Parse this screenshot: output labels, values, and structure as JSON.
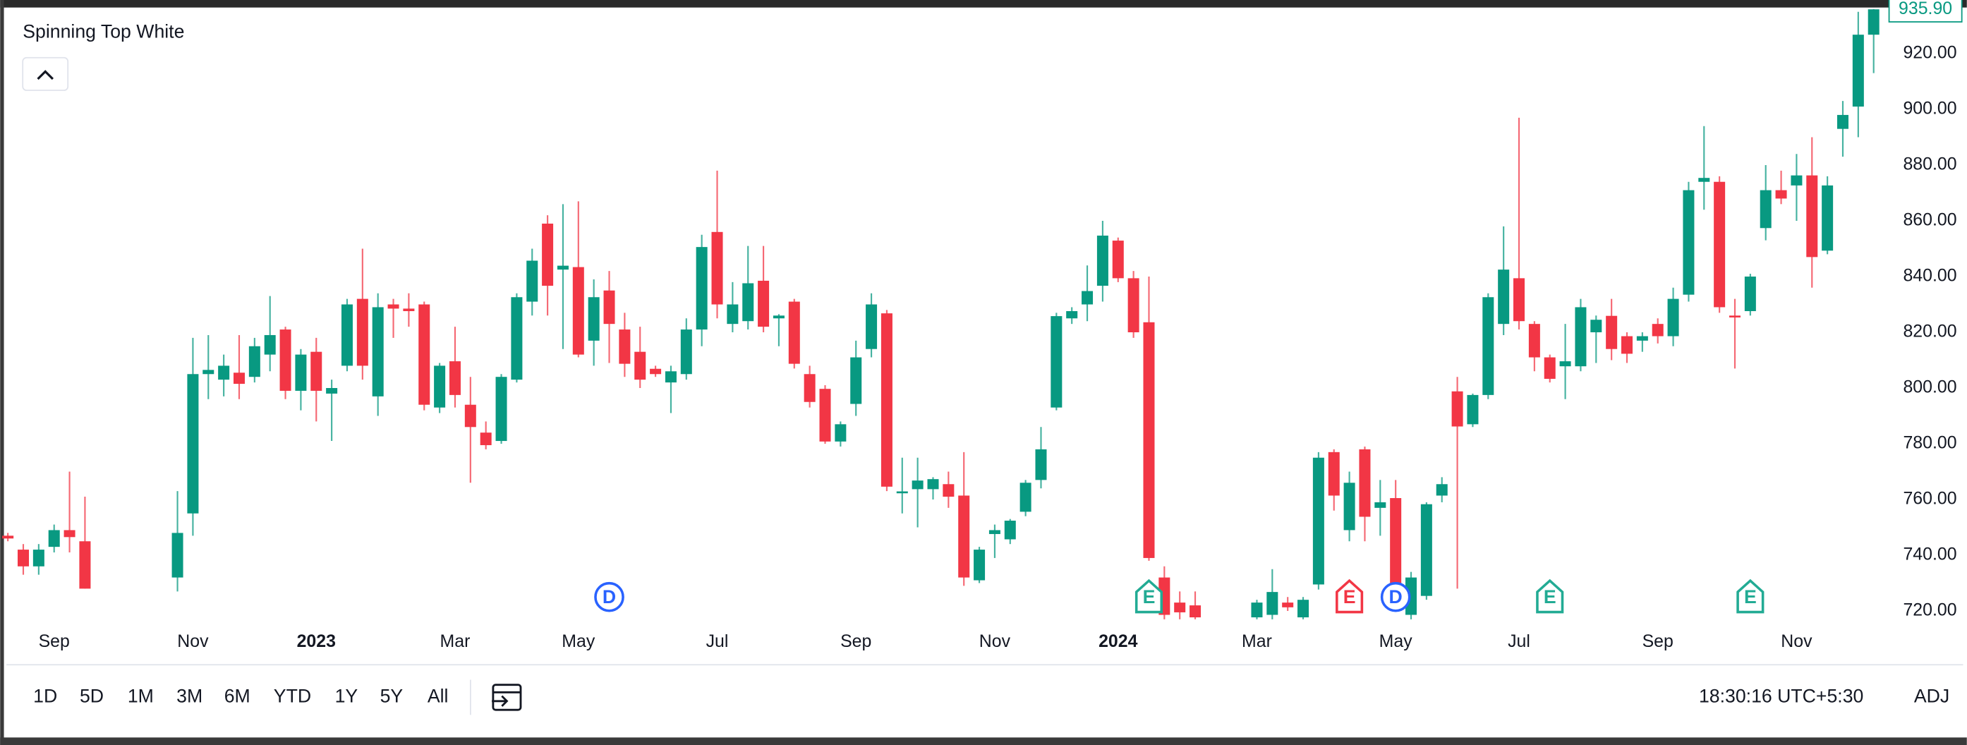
{
  "chart_data": {
    "type": "candlestick",
    "title": "Spinning Top White",
    "up_color": "#089981",
    "down_color": "#f23645",
    "x": [
      0,
      1,
      2,
      3,
      4,
      5,
      11,
      12,
      13,
      14,
      15,
      16,
      17,
      18,
      19,
      20,
      21,
      22,
      23,
      24,
      25,
      26,
      27,
      28,
      29,
      30,
      31,
      32,
      33,
      34,
      35,
      36,
      37,
      38,
      39,
      40,
      41,
      42,
      43,
      44,
      45,
      46,
      47,
      48,
      49,
      50,
      51,
      52,
      53,
      54,
      55,
      56,
      57,
      58,
      59,
      60,
      61,
      62,
      63,
      64,
      65,
      66,
      67,
      68,
      69,
      70,
      71,
      72,
      73,
      74,
      75,
      76,
      77,
      81,
      82,
      83,
      84,
      85,
      86,
      87,
      88,
      89,
      90,
      91,
      92,
      93,
      94,
      95,
      96,
      97,
      98,
      99,
      100,
      101,
      102,
      103,
      104,
      105,
      106,
      107,
      108,
      109,
      110,
      111,
      112,
      113,
      114,
      115,
      116,
      117,
      118,
      119,
      120,
      121
    ],
    "ohlc": [
      [
        747,
        748,
        745,
        746
      ],
      [
        742,
        744,
        733,
        736
      ],
      [
        736,
        744,
        733,
        742
      ],
      [
        743,
        751,
        741,
        749
      ],
      [
        749,
        770,
        741,
        746.5
      ],
      [
        745,
        761,
        728,
        728
      ],
      [
        732,
        763,
        727,
        748
      ],
      [
        755,
        818,
        747,
        805
      ],
      [
        805,
        819,
        796,
        806.5
      ],
      [
        803,
        812,
        797,
        808
      ],
      [
        805.5,
        819,
        796,
        801.5
      ],
      [
        804,
        818,
        802,
        815
      ],
      [
        812,
        833,
        806,
        819
      ],
      [
        821,
        822,
        796,
        799
      ],
      [
        799,
        814,
        792,
        812
      ],
      [
        813,
        818,
        788,
        799
      ],
      [
        798,
        803,
        781,
        800
      ],
      [
        808,
        832,
        806,
        830
      ],
      [
        832,
        850,
        803,
        808
      ],
      [
        797,
        834,
        790,
        829
      ],
      [
        830,
        832,
        818,
        828.5
      ],
      [
        828.5,
        834,
        822,
        827.6
      ],
      [
        830,
        831,
        792,
        794
      ],
      [
        793,
        809,
        791,
        808
      ],
      [
        809.6,
        822,
        793,
        797.5
      ],
      [
        794,
        804,
        766,
        786
      ],
      [
        784,
        788,
        778,
        779.5
      ],
      [
        781,
        805,
        780,
        804
      ],
      [
        803,
        834,
        802,
        832.6
      ],
      [
        831,
        850,
        826,
        845.7
      ],
      [
        859,
        862,
        826,
        836.7
      ],
      [
        842.5,
        866,
        814,
        843.9
      ],
      [
        843.4,
        867,
        811,
        812
      ],
      [
        817,
        839,
        808,
        832.6
      ],
      [
        835,
        842,
        809,
        823
      ],
      [
        821,
        827,
        804,
        808.7
      ],
      [
        813,
        822,
        800,
        803
      ],
      [
        806.9,
        808,
        804,
        805
      ],
      [
        802,
        808,
        791,
        806
      ],
      [
        805,
        825,
        803,
        821
      ],
      [
        821,
        855,
        815,
        850.6
      ],
      [
        856,
        878,
        825,
        830
      ],
      [
        823,
        838,
        820,
        830
      ],
      [
        824,
        851,
        821,
        837.6
      ],
      [
        838.5,
        851,
        820,
        822
      ],
      [
        825,
        826.5,
        815,
        826
      ],
      [
        831,
        832,
        807,
        808.7
      ],
      [
        805,
        808,
        793,
        795
      ],
      [
        799.7,
        801,
        780,
        780.8
      ],
      [
        780.8,
        788,
        779,
        787
      ],
      [
        794.3,
        817,
        790,
        811
      ],
      [
        814,
        834,
        811,
        830
      ],
      [
        826.8,
        828,
        763,
        764.6
      ],
      [
        762.6,
        775,
        755,
        762.9
      ],
      [
        763.7,
        775,
        750,
        766.8
      ],
      [
        763.7,
        768,
        760,
        767.3
      ],
      [
        765.5,
        770,
        757,
        761
      ],
      [
        761.4,
        777,
        729,
        732
      ],
      [
        731,
        743,
        730,
        742
      ],
      [
        747.6,
        751,
        739,
        749
      ],
      [
        745.7,
        753,
        744,
        752.4
      ],
      [
        755.6,
        767,
        754,
        766
      ],
      [
        767,
        786,
        764,
        778
      ],
      [
        793,
        827,
        792,
        825.8
      ],
      [
        825,
        829,
        823,
        827.6
      ],
      [
        830,
        844,
        824,
        834.8
      ],
      [
        836.7,
        860,
        831,
        854.7
      ],
      [
        852.9,
        854,
        838,
        839.4
      ],
      [
        839.4,
        842,
        818,
        820
      ],
      [
        823.6,
        840,
        738,
        739
      ],
      [
        732,
        736,
        717,
        718.6
      ],
      [
        723,
        727,
        717,
        719.5
      ],
      [
        722,
        727,
        717,
        717.7
      ],
      [
        717.7,
        724,
        717,
        723
      ],
      [
        718.6,
        735,
        717,
        726.8
      ],
      [
        723,
        725,
        720,
        721.3
      ],
      [
        717.7,
        725,
        717,
        724
      ],
      [
        729.5,
        777,
        727.7,
        775
      ],
      [
        777,
        778,
        756,
        761.4
      ],
      [
        749,
        770,
        745,
        766
      ],
      [
        778,
        779,
        745,
        753.8
      ],
      [
        757,
        767,
        747,
        759
      ],
      [
        760.5,
        767,
        726,
        727.7
      ],
      [
        718.6,
        734,
        717,
        732
      ],
      [
        725.4,
        759,
        724,
        758.3
      ],
      [
        761.4,
        768,
        759,
        765.5
      ],
      [
        798.8,
        804,
        728,
        786.2
      ],
      [
        787,
        798,
        786,
        797.5
      ],
      [
        797.5,
        834,
        796,
        832.6
      ],
      [
        823,
        858,
        819,
        842.5
      ],
      [
        839.4,
        897,
        821,
        824
      ],
      [
        823,
        824,
        806,
        811
      ],
      [
        811,
        812,
        802,
        803.3
      ],
      [
        807.8,
        823,
        796,
        809.6
      ],
      [
        807.8,
        832,
        806,
        829
      ],
      [
        820,
        826,
        809,
        824.5
      ],
      [
        825.9,
        832,
        810,
        814
      ],
      [
        818.6,
        820,
        809,
        812.3
      ],
      [
        817,
        820,
        813,
        818.6
      ],
      [
        823,
        825,
        816,
        818.6
      ],
      [
        818.6,
        836,
        815,
        832
      ],
      [
        833.5,
        874,
        831,
        871
      ],
      [
        874,
        894,
        864,
        875.4
      ],
      [
        874,
        876,
        827,
        829
      ],
      [
        826,
        832,
        807,
        825.5
      ],
      [
        827.6,
        841,
        826,
        840
      ],
      [
        857.4,
        880,
        853,
        871
      ],
      [
        871,
        878,
        866,
        868
      ],
      [
        872.7,
        884,
        860,
        876.3
      ],
      [
        876.3,
        890,
        836,
        847
      ],
      [
        849.3,
        876,
        848,
        872.7
      ],
      [
        893,
        903,
        883,
        898
      ],
      [
        901,
        935,
        890,
        926.8
      ],
      [
        926.8,
        936,
        913,
        935.9
      ]
    ],
    "xlim": [
      -0.5,
      122
    ],
    "xticks": [
      {
        "value": 3,
        "label": "Sep"
      },
      {
        "value": 12,
        "label": "Nov"
      },
      {
        "value": 20,
        "label": "2023"
      },
      {
        "value": 29,
        "label": "Mar"
      },
      {
        "value": 37,
        "label": "May"
      },
      {
        "value": 46,
        "label": "Jul"
      },
      {
        "value": 55,
        "label": "Sep"
      },
      {
        "value": 64,
        "label": "Nov"
      },
      {
        "value": 72,
        "label": "2024"
      },
      {
        "value": 81,
        "label": "Mar"
      },
      {
        "value": 90,
        "label": "May"
      },
      {
        "value": 98,
        "label": "Jul"
      },
      {
        "value": 107,
        "label": "Sep"
      },
      {
        "value": 116,
        "label": "Nov"
      }
    ],
    "ylim": [
      716,
      937
    ],
    "yticks": [
      {
        "value": 720,
        "label": "720.00"
      },
      {
        "value": 740,
        "label": "740.00"
      },
      {
        "value": 760,
        "label": "760.00"
      },
      {
        "value": 780,
        "label": "780.00"
      },
      {
        "value": 800,
        "label": "800.00"
      },
      {
        "value": 820,
        "label": "820.00"
      },
      {
        "value": 840,
        "label": "840.00"
      },
      {
        "value": 860,
        "label": "860.00"
      },
      {
        "value": 880,
        "label": "880.00"
      },
      {
        "value": 900,
        "label": "900.00"
      },
      {
        "value": 920,
        "label": "920.00"
      }
    ],
    "last_price": {
      "value": 935.9,
      "label": "935.90"
    },
    "events": [
      {
        "x": 39,
        "label": "D",
        "color": "#2962ff"
      },
      {
        "x": 74,
        "label": "E",
        "color": "#22ab94"
      },
      {
        "x": 87,
        "label": "E",
        "color": "#f23645"
      },
      {
        "x": 90,
        "label": "D",
        "color": "#2962ff"
      },
      {
        "x": 100,
        "label": "E",
        "color": "#22ab94"
      },
      {
        "x": 113,
        "label": "E",
        "color": "#22ab94"
      }
    ],
    "ranges": [
      "1D",
      "5D",
      "1M",
      "3M",
      "6M",
      "YTD",
      "1Y",
      "5Y",
      "All"
    ],
    "clock": "18:30:16 UTC+5:30",
    "adjust": "ADJ"
  }
}
